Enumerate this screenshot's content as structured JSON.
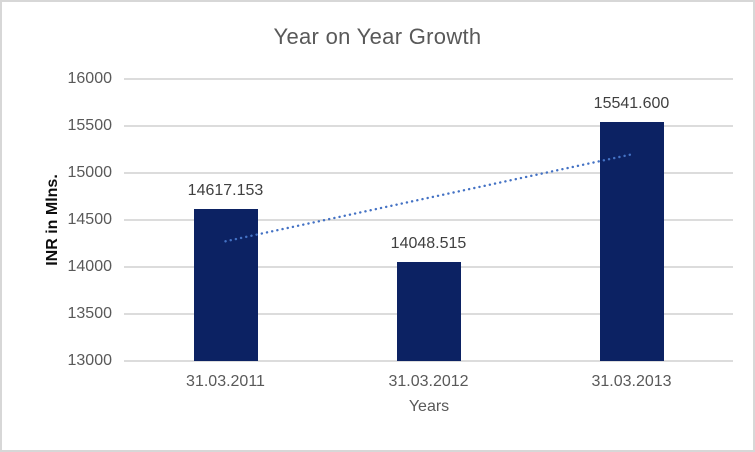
{
  "chart_data": {
    "type": "bar",
    "title": "Year on Year Growth",
    "xlabel": "Years",
    "ylabel": "INR in Mlns.",
    "categories": [
      "31.03.2011",
      "31.03.2012",
      "31.03.2013"
    ],
    "series": [
      {
        "name": "INR in Mlns.",
        "values": [
          14617.153,
          14048.515,
          15541.6
        ]
      }
    ],
    "data_labels": [
      "14617.153",
      "14048.515",
      "15541.600"
    ],
    "y_ticks": [
      13000,
      13500,
      14000,
      14500,
      15000,
      15500,
      16000
    ],
    "ylim": [
      13000,
      16000
    ],
    "grid": true,
    "legend": "none",
    "trendline": {
      "type": "linear",
      "style": "dotted",
      "endpoint_values": [
        14273.5,
        15198.0
      ]
    },
    "colors": {
      "bar": "#0c2263",
      "trendline": "#4472c4",
      "gridline": "#dcdcdc",
      "title_text": "#595959",
      "tick_text": "#595959",
      "data_label_text": "#404040",
      "axis_title_text": "#0d0d0d",
      "frame_border": "#d7d7d7",
      "background": "#ffffff"
    }
  }
}
